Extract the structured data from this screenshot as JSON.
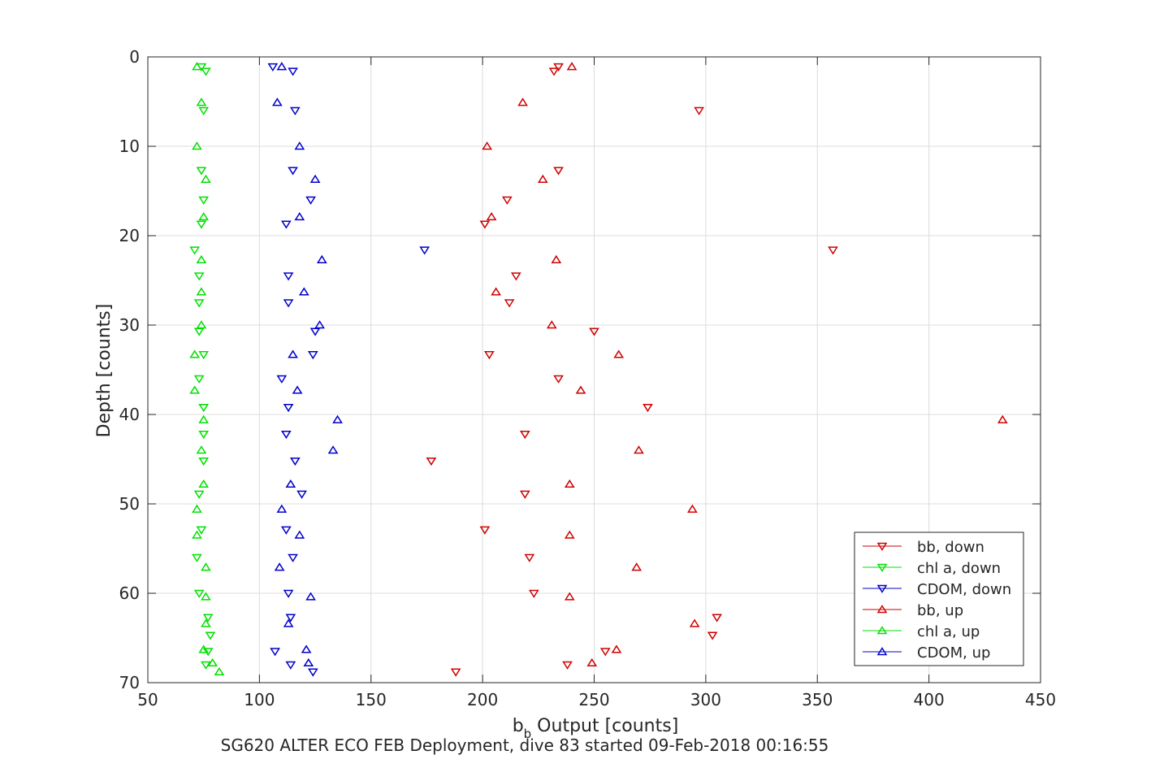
{
  "chart_data": {
    "type": "scatter",
    "xlabel_main": "b",
    "xlabel_sub": "b",
    "xlabel_rest": " Output [counts]",
    "ylabel": "Depth [counts]",
    "caption": "SG620 ALTER ECO FEB Deployment, dive 83 started 09-Feb-2018 00:16:55",
    "xlim": [
      50,
      450
    ],
    "ylim": [
      0,
      70
    ],
    "y_reversed": true,
    "grid": true,
    "legend_position": "bottom-right",
    "xticks": [
      50,
      100,
      150,
      200,
      250,
      300,
      350,
      400,
      450
    ],
    "yticks": [
      0,
      10,
      20,
      30,
      40,
      50,
      60,
      70
    ],
    "series": [
      {
        "name": "bb, down",
        "color": "#d00000",
        "marker": "triangle-down",
        "points": [
          [
            232,
            1.6
          ],
          [
            234,
            1.1
          ],
          [
            297,
            6.0
          ],
          [
            234,
            12.7
          ],
          [
            211,
            16.0
          ],
          [
            201,
            18.7
          ],
          [
            357,
            21.6
          ],
          [
            215,
            24.5
          ],
          [
            212,
            27.5
          ],
          [
            250,
            30.7
          ],
          [
            203,
            33.3
          ],
          [
            234,
            36.0
          ],
          [
            274,
            39.2
          ],
          [
            219,
            42.2
          ],
          [
            177,
            45.2
          ],
          [
            219,
            48.9
          ],
          [
            201,
            52.9
          ],
          [
            221,
            56.0
          ],
          [
            223,
            60.0
          ],
          [
            305,
            62.7
          ],
          [
            303,
            64.7
          ],
          [
            255,
            66.5
          ],
          [
            238,
            68.0
          ],
          [
            188,
            68.8
          ]
        ]
      },
      {
        "name": "chl a, down",
        "color": "#00e000",
        "marker": "triangle-down",
        "points": [
          [
            76,
            1.6
          ],
          [
            74,
            1.1
          ],
          [
            75,
            6.0
          ],
          [
            74,
            12.7
          ],
          [
            75,
            16.0
          ],
          [
            74,
            18.7
          ],
          [
            71,
            21.6
          ],
          [
            73,
            24.5
          ],
          [
            73,
            27.5
          ],
          [
            73,
            30.7
          ],
          [
            75,
            33.3
          ],
          [
            73,
            36.0
          ],
          [
            75,
            39.2
          ],
          [
            75,
            42.2
          ],
          [
            75,
            45.2
          ],
          [
            73,
            48.9
          ],
          [
            74,
            52.9
          ],
          [
            72,
            56.0
          ],
          [
            73,
            60.0
          ],
          [
            77,
            62.7
          ],
          [
            78,
            64.7
          ],
          [
            77,
            66.5
          ],
          [
            76,
            68.0
          ]
        ]
      },
      {
        "name": "CDOM, down",
        "color": "#0000cc",
        "marker": "triangle-down",
        "points": [
          [
            106,
            1.1
          ],
          [
            115,
            1.6
          ],
          [
            116,
            6.0
          ],
          [
            115,
            12.7
          ],
          [
            123,
            16.0
          ],
          [
            112,
            18.7
          ],
          [
            174,
            21.6
          ],
          [
            113,
            24.5
          ],
          [
            113,
            27.5
          ],
          [
            125,
            30.7
          ],
          [
            124,
            33.3
          ],
          [
            110,
            36.0
          ],
          [
            113,
            39.2
          ],
          [
            112,
            42.2
          ],
          [
            116,
            45.2
          ],
          [
            119,
            48.9
          ],
          [
            112,
            52.9
          ],
          [
            115,
            56.0
          ],
          [
            113,
            60.0
          ],
          [
            114,
            62.7
          ],
          [
            107,
            66.5
          ],
          [
            114,
            68.0
          ],
          [
            124,
            68.8
          ]
        ]
      },
      {
        "name": "bb, up",
        "color": "#d00000",
        "marker": "triangle-up",
        "points": [
          [
            240,
            1.1
          ],
          [
            218,
            5.1
          ],
          [
            202,
            10.0
          ],
          [
            227,
            13.7
          ],
          [
            204,
            17.9
          ],
          [
            233,
            22.7
          ],
          [
            206,
            26.3
          ],
          [
            231,
            30.0
          ],
          [
            261,
            33.3
          ],
          [
            244,
            37.3
          ],
          [
            433,
            40.6
          ],
          [
            270,
            44.0
          ],
          [
            239,
            47.8
          ],
          [
            294,
            50.6
          ],
          [
            239,
            53.5
          ],
          [
            269,
            57.1
          ],
          [
            239,
            60.4
          ],
          [
            295,
            63.4
          ],
          [
            260,
            66.3
          ],
          [
            249,
            67.8
          ]
        ]
      },
      {
        "name": "chl a, up",
        "color": "#00e000",
        "marker": "triangle-up",
        "points": [
          [
            72,
            1.1
          ],
          [
            74,
            5.1
          ],
          [
            72,
            10.0
          ],
          [
            76,
            13.7
          ],
          [
            75,
            17.9
          ],
          [
            74,
            22.7
          ],
          [
            74,
            26.3
          ],
          [
            74,
            30.0
          ],
          [
            71,
            33.3
          ],
          [
            71,
            37.3
          ],
          [
            75,
            40.6
          ],
          [
            74,
            44.0
          ],
          [
            75,
            47.8
          ],
          [
            72,
            50.6
          ],
          [
            72,
            53.5
          ],
          [
            76,
            57.1
          ],
          [
            76,
            60.4
          ],
          [
            76,
            63.4
          ],
          [
            75,
            66.3
          ],
          [
            79,
            67.8
          ],
          [
            82,
            68.8
          ]
        ]
      },
      {
        "name": "CDOM, up",
        "color": "#0000cc",
        "marker": "triangle-up",
        "points": [
          [
            110,
            1.1
          ],
          [
            108,
            5.1
          ],
          [
            118,
            10.0
          ],
          [
            125,
            13.7
          ],
          [
            118,
            17.9
          ],
          [
            128,
            22.7
          ],
          [
            120,
            26.3
          ],
          [
            127,
            30.0
          ],
          [
            115,
            33.3
          ],
          [
            117,
            37.3
          ],
          [
            135,
            40.6
          ],
          [
            133,
            44.0
          ],
          [
            114,
            47.8
          ],
          [
            110,
            50.6
          ],
          [
            118,
            53.5
          ],
          [
            109,
            57.1
          ],
          [
            123,
            60.4
          ],
          [
            113,
            63.4
          ],
          [
            121,
            66.3
          ],
          [
            122,
            67.8
          ]
        ]
      }
    ]
  }
}
